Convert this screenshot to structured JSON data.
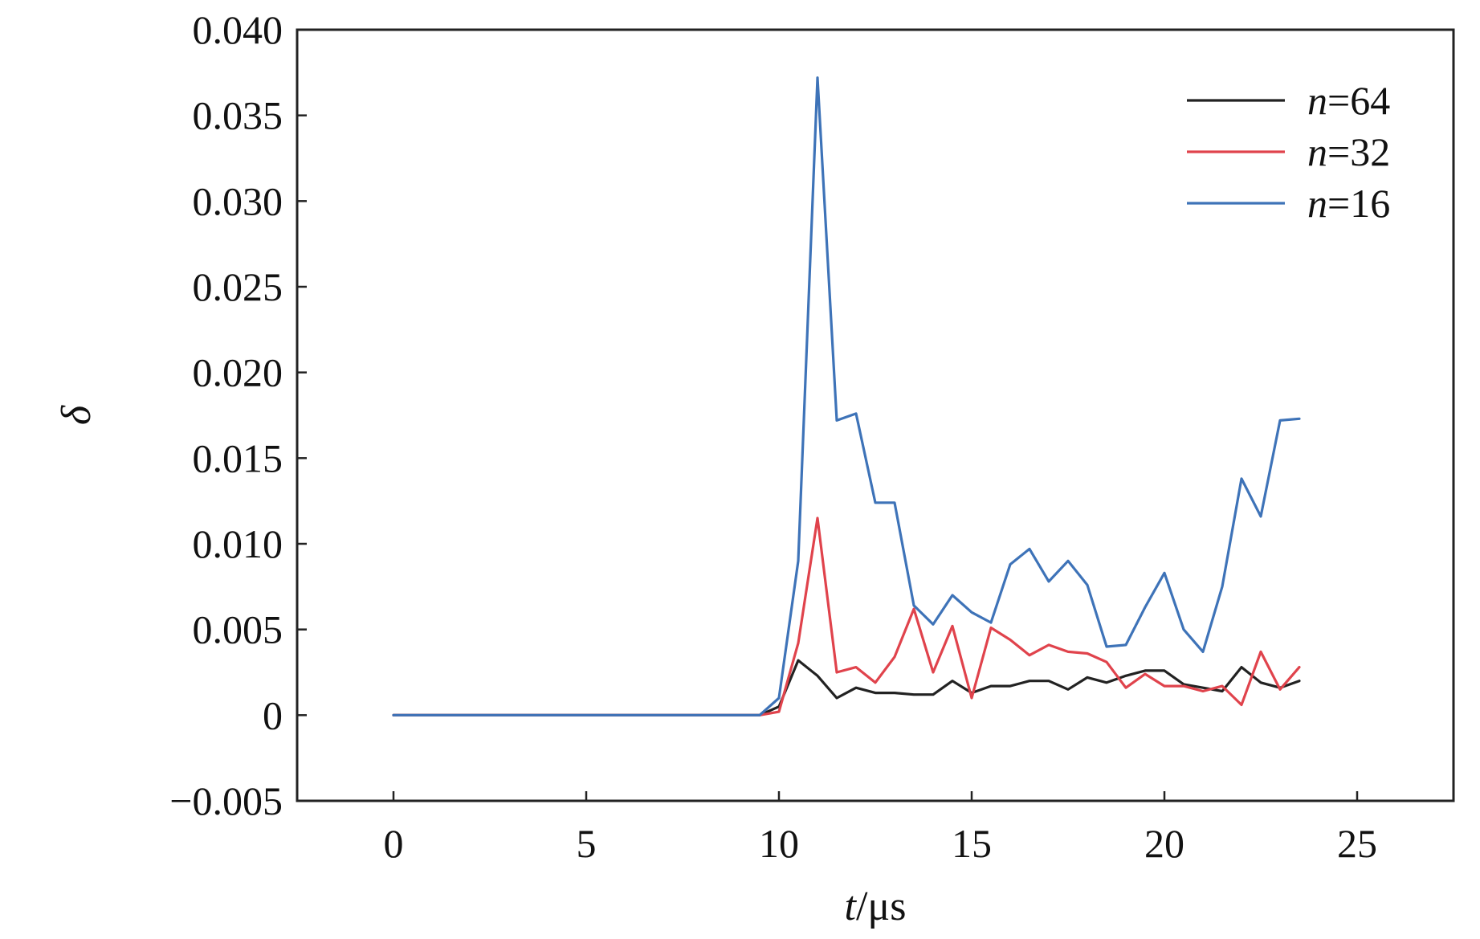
{
  "chart_data": {
    "type": "line",
    "xlabel_var": "t",
    "xlabel_unit": "/μs",
    "ylabel": "δ",
    "xlim": [
      -2.5,
      27.5
    ],
    "ylim": [
      -0.005,
      0.04
    ],
    "xticks": [
      0,
      5,
      10,
      15,
      20,
      25
    ],
    "xtick_labels": [
      "0",
      "5",
      "10",
      "15",
      "20",
      "25"
    ],
    "yticks": [
      -0.005,
      0,
      0.005,
      0.01,
      0.015,
      0.02,
      0.025,
      0.03,
      0.035,
      0.04
    ],
    "ytick_labels": [
      "−0.005",
      "0",
      "0.005",
      "0.010",
      "0.015",
      "0.020",
      "0.025",
      "0.030",
      "0.035",
      "0.040"
    ],
    "grid": false,
    "legend_position": "top-right",
    "series": [
      {
        "legend_var": "n",
        "legend_rest": "=64",
        "color": "#222222",
        "x": [
          0,
          1,
          2,
          3,
          4,
          5,
          6,
          7,
          8,
          9,
          9.5,
          10,
          10.5,
          11,
          11.5,
          12,
          12.5,
          13,
          13.5,
          14,
          14.5,
          15,
          15.5,
          16,
          16.5,
          17,
          17.5,
          18,
          18.5,
          19,
          19.5,
          20,
          20.5,
          21,
          21.5,
          22,
          22.5,
          23,
          23.5
        ],
        "y": [
          0,
          0,
          0,
          0,
          0,
          0,
          0,
          0,
          0,
          0,
          0,
          0.0005,
          0.0032,
          0.0023,
          0.001,
          0.0016,
          0.0013,
          0.0013,
          0.0012,
          0.0012,
          0.002,
          0.0013,
          0.0017,
          0.0017,
          0.002,
          0.002,
          0.0015,
          0.0022,
          0.0019,
          0.0023,
          0.0026,
          0.0026,
          0.0018,
          0.0016,
          0.0014,
          0.0028,
          0.0019,
          0.0016,
          0.002
        ]
      },
      {
        "legend_var": "n",
        "legend_rest": "=32",
        "color": "#e0434c",
        "x": [
          0,
          1,
          2,
          3,
          4,
          5,
          6,
          7,
          8,
          9,
          9.5,
          10,
          10.5,
          11,
          11.5,
          12,
          12.5,
          13,
          13.5,
          14,
          14.5,
          15,
          15.5,
          16,
          16.5,
          17,
          17.5,
          18,
          18.5,
          19,
          19.5,
          20,
          20.5,
          21,
          21.5,
          22,
          22.5,
          23,
          23.5
        ],
        "y": [
          0,
          0,
          0,
          0,
          0,
          0,
          0,
          0,
          0,
          0,
          0,
          0.0002,
          0.0042,
          0.0115,
          0.0025,
          0.0028,
          0.0019,
          0.0034,
          0.0062,
          0.0025,
          0.0052,
          0.001,
          0.0051,
          0.0044,
          0.0035,
          0.0041,
          0.0037,
          0.0036,
          0.0031,
          0.0016,
          0.0024,
          0.0017,
          0.0017,
          0.0014,
          0.0017,
          0.0006,
          0.0037,
          0.0015,
          0.0028
        ]
      },
      {
        "legend_var": "n",
        "legend_rest": "=16",
        "color": "#3e73b8",
        "x": [
          0,
          1,
          2,
          3,
          4,
          5,
          6,
          7,
          8,
          9,
          9.5,
          10,
          10.5,
          11,
          11.5,
          12,
          12.5,
          13,
          13.5,
          14,
          14.5,
          15,
          15.5,
          16,
          16.5,
          17,
          17.5,
          18,
          18.5,
          19,
          19.5,
          20,
          20.5,
          21,
          21.5,
          22,
          22.5,
          23,
          23.5
        ],
        "y": [
          0,
          0,
          0,
          0,
          0,
          0,
          0,
          0,
          0,
          0,
          0,
          0.001,
          0.009,
          0.0372,
          0.0172,
          0.0176,
          0.0124,
          0.0124,
          0.0064,
          0.0053,
          0.007,
          0.006,
          0.0054,
          0.0088,
          0.0097,
          0.0078,
          0.009,
          0.0076,
          0.004,
          0.0041,
          0.0063,
          0.0083,
          0.005,
          0.0037,
          0.0075,
          0.0138,
          0.0116,
          0.0172,
          0.0173
        ]
      }
    ]
  }
}
